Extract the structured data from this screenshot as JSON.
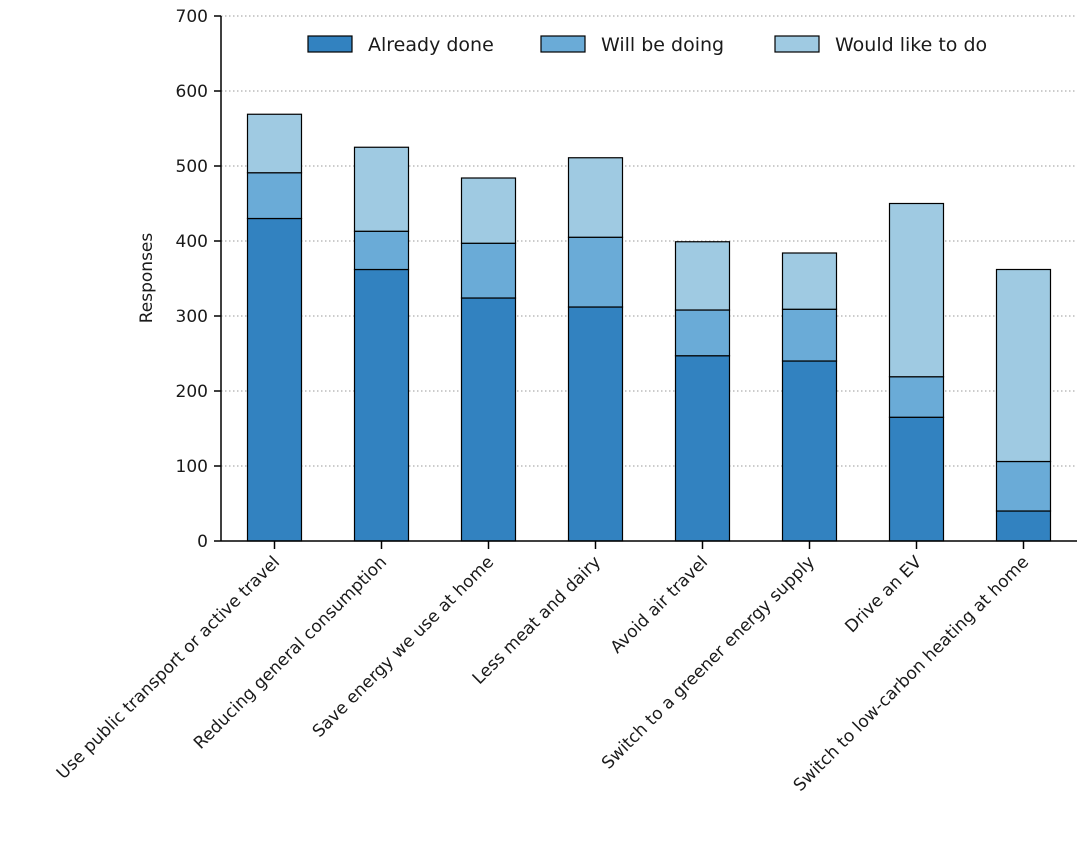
{
  "chart_data": {
    "type": "bar",
    "stacked": true,
    "title": "",
    "xlabel": "",
    "ylabel": "Responses",
    "ylim": [
      0,
      700
    ],
    "yticks": [
      0,
      100,
      200,
      300,
      400,
      500,
      600,
      700
    ],
    "grid": "horizontal dotted",
    "legend_position": "top",
    "categories": [
      "Use public transport or active travel",
      "Reducing general consumption",
      "Save energy we use at home",
      "Less meat and dairy",
      "Avoid air travel",
      "Switch to a greener energy supply",
      "Drive an EV",
      "Switch to low-carbon heating at home"
    ],
    "series": [
      {
        "name": "Already done",
        "color": "#3282c0",
        "values": [
          430,
          362,
          324,
          312,
          247,
          240,
          165,
          40
        ]
      },
      {
        "name": "Will be doing",
        "color": "#6aabd7",
        "values": [
          61,
          51,
          73,
          93,
          61,
          69,
          54,
          66
        ]
      },
      {
        "name": "Would like to do",
        "color": "#9fcae2",
        "values": [
          78,
          112,
          87,
          106,
          91,
          75,
          231,
          256
        ]
      }
    ]
  }
}
